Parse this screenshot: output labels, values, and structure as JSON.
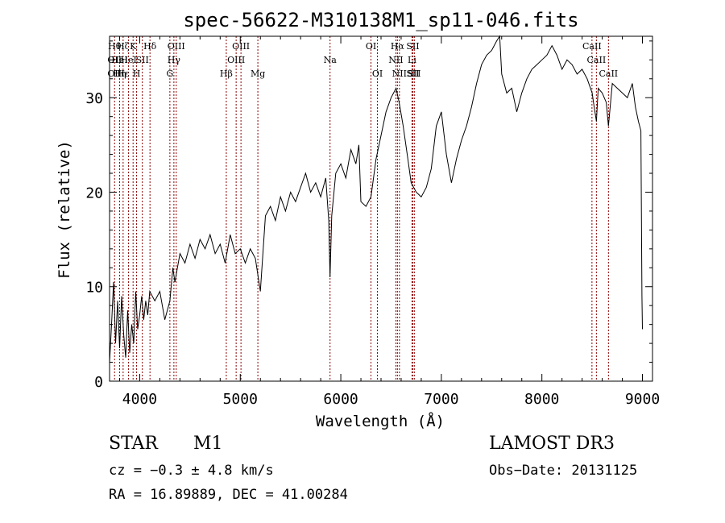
{
  "chart_data": {
    "type": "line",
    "title": "spec-56622-M310138M1_sp11-046.fits",
    "xlabel": "Wavelength (Å)",
    "ylabel": "Flux (relative)",
    "xlim": [
      3700,
      9100
    ],
    "ylim": [
      0,
      36.5
    ],
    "xticks": [
      4000,
      5000,
      6000,
      7000,
      8000,
      9000
    ],
    "yticks": [
      0,
      10,
      20,
      30
    ],
    "grid": false,
    "series": [
      {
        "values": [
          [
            3700,
            2.0
          ],
          [
            3720,
            6.0
          ],
          [
            3740,
            10.5
          ],
          [
            3760,
            4.0
          ],
          [
            3780,
            8.5
          ],
          [
            3800,
            3.5
          ],
          [
            3820,
            9.0
          ],
          [
            3840,
            5.0
          ],
          [
            3860,
            2.5
          ],
          [
            3880,
            7.5
          ],
          [
            3900,
            3.0
          ],
          [
            3920,
            6.0
          ],
          [
            3940,
            4.0
          ],
          [
            3960,
            9.5
          ],
          [
            3980,
            5.5
          ],
          [
            4000,
            7.0
          ],
          [
            4020,
            9.0
          ],
          [
            4040,
            6.5
          ],
          [
            4060,
            8.5
          ],
          [
            4080,
            7.0
          ],
          [
            4100,
            9.5
          ],
          [
            4150,
            8.5
          ],
          [
            4200,
            9.5
          ],
          [
            4250,
            6.5
          ],
          [
            4300,
            8.5
          ],
          [
            4330,
            12.0
          ],
          [
            4350,
            10.5
          ],
          [
            4400,
            13.5
          ],
          [
            4450,
            12.5
          ],
          [
            4500,
            14.5
          ],
          [
            4550,
            13.0
          ],
          [
            4600,
            15.0
          ],
          [
            4650,
            14.0
          ],
          [
            4700,
            15.5
          ],
          [
            4750,
            13.5
          ],
          [
            4800,
            14.5
          ],
          [
            4850,
            12.5
          ],
          [
            4900,
            15.5
          ],
          [
            4950,
            13.5
          ],
          [
            5000,
            14.0
          ],
          [
            5050,
            12.5
          ],
          [
            5100,
            14.0
          ],
          [
            5150,
            13.0
          ],
          [
            5200,
            9.5
          ],
          [
            5250,
            17.5
          ],
          [
            5300,
            18.5
          ],
          [
            5350,
            17.0
          ],
          [
            5400,
            19.5
          ],
          [
            5450,
            18.0
          ],
          [
            5500,
            20.0
          ],
          [
            5550,
            19.0
          ],
          [
            5600,
            20.5
          ],
          [
            5650,
            22.0
          ],
          [
            5700,
            20.0
          ],
          [
            5750,
            21.0
          ],
          [
            5800,
            19.5
          ],
          [
            5850,
            21.5
          ],
          [
            5880,
            17.0
          ],
          [
            5893,
            11.0
          ],
          [
            5910,
            17.5
          ],
          [
            5950,
            22.0
          ],
          [
            6000,
            23.0
          ],
          [
            6050,
            21.5
          ],
          [
            6100,
            24.5
          ],
          [
            6150,
            23.0
          ],
          [
            6180,
            25.0
          ],
          [
            6200,
            19.0
          ],
          [
            6250,
            18.5
          ],
          [
            6300,
            19.5
          ],
          [
            6350,
            23.5
          ],
          [
            6400,
            26.0
          ],
          [
            6450,
            28.5
          ],
          [
            6500,
            30.0
          ],
          [
            6550,
            31.0
          ],
          [
            6580,
            29.5
          ],
          [
            6620,
            27.0
          ],
          [
            6660,
            24.0
          ],
          [
            6700,
            21.0
          ],
          [
            6750,
            20.0
          ],
          [
            6800,
            19.5
          ],
          [
            6850,
            20.5
          ],
          [
            6900,
            22.5
          ],
          [
            6950,
            27.0
          ],
          [
            7000,
            28.5
          ],
          [
            7050,
            24.0
          ],
          [
            7100,
            21.0
          ],
          [
            7150,
            23.5
          ],
          [
            7200,
            25.5
          ],
          [
            7250,
            27.0
          ],
          [
            7300,
            29.0
          ],
          [
            7350,
            31.5
          ],
          [
            7400,
            33.5
          ],
          [
            7450,
            34.5
          ],
          [
            7500,
            35.0
          ],
          [
            7550,
            36.0
          ],
          [
            7580,
            36.5
          ],
          [
            7600,
            32.5
          ],
          [
            7650,
            30.5
          ],
          [
            7700,
            31.0
          ],
          [
            7750,
            28.5
          ],
          [
            7800,
            30.5
          ],
          [
            7850,
            32.0
          ],
          [
            7900,
            33.0
          ],
          [
            7950,
            33.5
          ],
          [
            8000,
            34.0
          ],
          [
            8050,
            34.5
          ],
          [
            8100,
            35.5
          ],
          [
            8150,
            34.5
          ],
          [
            8200,
            33.0
          ],
          [
            8250,
            34.0
          ],
          [
            8300,
            33.5
          ],
          [
            8350,
            32.5
          ],
          [
            8400,
            33.0
          ],
          [
            8450,
            32.0
          ],
          [
            8500,
            30.5
          ],
          [
            8520,
            29.0
          ],
          [
            8542,
            27.5
          ],
          [
            8560,
            31.0
          ],
          [
            8600,
            30.5
          ],
          [
            8640,
            29.5
          ],
          [
            8662,
            27.0
          ],
          [
            8700,
            31.5
          ],
          [
            8750,
            31.0
          ],
          [
            8800,
            30.5
          ],
          [
            8850,
            30.0
          ],
          [
            8900,
            31.5
          ],
          [
            8930,
            29.0
          ],
          [
            8960,
            27.5
          ],
          [
            8985,
            26.5
          ],
          [
            8995,
            9.0
          ],
          [
            9000,
            5.5
          ]
        ]
      }
    ],
    "lines": [
      {
        "x": 3750,
        "labels": [
          "Hθ",
          "OII",
          "OII"
        ],
        "rows": [
          0,
          1,
          2
        ]
      },
      {
        "x": 3800,
        "labels": [
          "HeI",
          "Hη"
        ],
        "rows": [
          1,
          2
        ]
      },
      {
        "x": 3835,
        "labels": [
          "Hζ",
          "Hε"
        ],
        "rows": [
          0,
          2
        ]
      },
      {
        "x": 3889,
        "labels": [
          "HeI"
        ],
        "rows": [
          1
        ]
      },
      {
        "x": 3934,
        "labels": [
          "K"
        ],
        "rows": [
          0
        ]
      },
      {
        "x": 3969,
        "labels": [
          "H"
        ],
        "rows": [
          2
        ]
      },
      {
        "x": 4026,
        "labels": [
          "SII"
        ],
        "rows": [
          1
        ]
      },
      {
        "x": 4102,
        "labels": [
          "Hδ"
        ],
        "rows": [
          0
        ]
      },
      {
        "x": 4300,
        "labels": [
          "G"
        ],
        "rows": [
          2
        ]
      },
      {
        "x": 4340,
        "labels": [
          "Hγ"
        ],
        "rows": [
          1
        ]
      },
      {
        "x": 4363,
        "labels": [
          "OIII"
        ],
        "rows": [
          0
        ]
      },
      {
        "x": 4861,
        "labels": [
          "Hβ"
        ],
        "rows": [
          2
        ]
      },
      {
        "x": 4959,
        "labels": [
          "OIII"
        ],
        "rows": [
          1
        ]
      },
      {
        "x": 5007,
        "labels": [
          "OIII"
        ],
        "rows": [
          0
        ]
      },
      {
        "x": 5175,
        "labels": [
          "Mg"
        ],
        "rows": [
          2
        ]
      },
      {
        "x": 5893,
        "labels": [
          "Na"
        ],
        "rows": [
          1
        ]
      },
      {
        "x": 6300,
        "labels": [
          "OI"
        ],
        "rows": [
          0
        ]
      },
      {
        "x": 6364,
        "labels": [
          "OI"
        ],
        "rows": [
          2
        ]
      },
      {
        "x": 6548,
        "labels": [
          "NII"
        ],
        "rows": [
          1
        ]
      },
      {
        "x": 6563,
        "labels": [
          "Hα"
        ],
        "rows": [
          0
        ]
      },
      {
        "x": 6583,
        "labels": [
          "NII"
        ],
        "rows": [
          2
        ]
      },
      {
        "x": 6708,
        "labels": [
          "Li"
        ],
        "rows": [
          1
        ]
      },
      {
        "x": 6716,
        "labels": [
          "SII",
          "SII"
        ],
        "rows": [
          0,
          2
        ]
      },
      {
        "x": 6731,
        "labels": [
          "SII"
        ],
        "rows": [
          2
        ]
      },
      {
        "x": 8498,
        "labels": [
          "CaII"
        ],
        "rows": [
          0
        ]
      },
      {
        "x": 8542,
        "labels": [
          "CaII"
        ],
        "rows": [
          1
        ]
      },
      {
        "x": 8662,
        "labels": [
          "CaII"
        ],
        "rows": [
          2
        ]
      }
    ]
  },
  "footer": {
    "object_class": "STAR",
    "subclass": "M1",
    "survey": "LAMOST DR3",
    "cz": "cz = −0.3 ± 4.8 km/s",
    "obs_date": "Obs−Date: 20131125",
    "radec": "RA =  16.89889, DEC =  41.00284"
  },
  "colors": {
    "line_marker": "#8b0000",
    "spectrum": "#000000",
    "axes": "#000000"
  }
}
